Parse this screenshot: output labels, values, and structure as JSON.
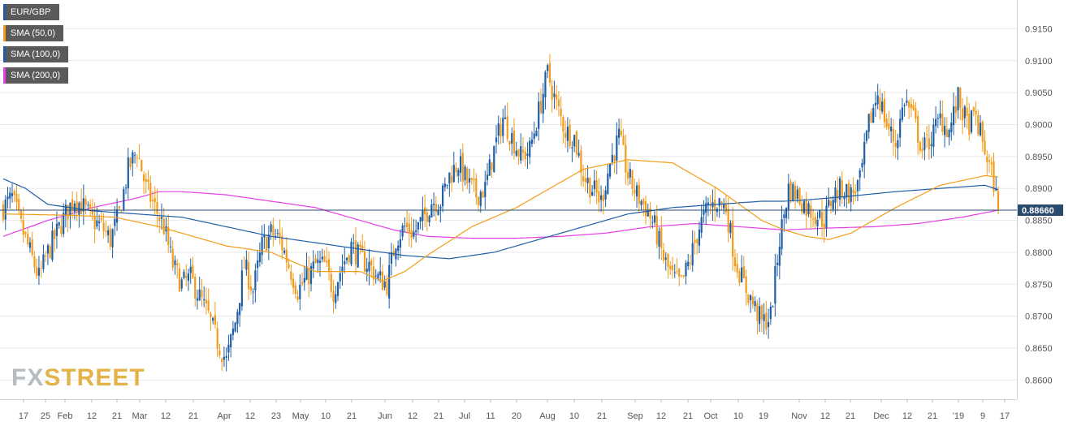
{
  "chart_data": {
    "type": "candlestick",
    "legend": [
      {
        "label": "EUR/GBP",
        "color": "#1f5fa8"
      },
      {
        "label": "SMA (50,0)",
        "color": "#f39c1b"
      },
      {
        "label": "SMA (100,0)",
        "color": "#1f5fa8"
      },
      {
        "label": "SMA (200,0)",
        "color": "#e83ee8"
      }
    ],
    "ylim": [
      0.857,
      0.9195
    ],
    "y_ticks": [
      "0.8600",
      "0.8650",
      "0.8700",
      "0.8750",
      "0.8800",
      "0.8850",
      "0.8900",
      "0.8950",
      "0.9000",
      "0.9050",
      "0.9100",
      "0.9150"
    ],
    "x_ticks": [
      "17",
      "25",
      "Feb",
      "12",
      "21",
      "Mar",
      "12",
      "21",
      "Apr",
      "12",
      "23",
      "May",
      "10",
      "21",
      "Jun",
      "12",
      "21",
      "Jul",
      "11",
      "20",
      "Aug",
      "10",
      "21",
      "Sep",
      "12",
      "21",
      "Oct",
      "10",
      "19",
      "Nov",
      "12",
      "21",
      "Dec",
      "12",
      "21",
      "'19",
      "9",
      "17"
    ],
    "current_price": "0.88660",
    "current_value": 0.8866,
    "colors": {
      "up": "#1f5fa8",
      "down": "#f39c1b",
      "sma50": "#f39c1b",
      "sma100": "#1f5fa8",
      "sma200": "#e83ee8",
      "grid": "#e9e9e9",
      "price_tag": "#2a4a6e"
    },
    "close_anchors": [
      [
        0,
        0.887
      ],
      [
        4,
        0.8885
      ],
      [
        8,
        0.884
      ],
      [
        12,
        0.88
      ],
      [
        16,
        0.876
      ],
      [
        20,
        0.88
      ],
      [
        24,
        0.883
      ],
      [
        28,
        0.886
      ],
      [
        32,
        0.8885
      ],
      [
        36,
        0.887
      ],
      [
        40,
        0.885
      ],
      [
        44,
        0.884
      ],
      [
        48,
        0.882
      ],
      [
        52,
        0.886
      ],
      [
        56,
        0.893
      ],
      [
        60,
        0.896
      ],
      [
        64,
        0.89
      ],
      [
        68,
        0.887
      ],
      [
        72,
        0.884
      ],
      [
        76,
        0.878
      ],
      [
        80,
        0.875
      ],
      [
        84,
        0.876
      ],
      [
        88,
        0.873
      ],
      [
        92,
        0.87
      ],
      [
        96,
        0.866
      ],
      [
        100,
        0.863
      ],
      [
        104,
        0.869
      ],
      [
        108,
        0.878
      ],
      [
        112,
        0.874
      ],
      [
        116,
        0.881
      ],
      [
        120,
        0.883
      ],
      [
        124,
        0.882
      ],
      [
        128,
        0.878
      ],
      [
        132,
        0.874
      ],
      [
        136,
        0.876
      ],
      [
        140,
        0.878
      ],
      [
        144,
        0.878
      ],
      [
        148,
        0.874
      ],
      [
        152,
        0.878
      ],
      [
        156,
        0.881
      ],
      [
        160,
        0.879
      ],
      [
        164,
        0.878
      ],
      [
        168,
        0.876
      ],
      [
        172,
        0.875
      ],
      [
        176,
        0.882
      ],
      [
        180,
        0.884
      ],
      [
        184,
        0.883
      ],
      [
        188,
        0.885
      ],
      [
        192,
        0.888
      ],
      [
        196,
        0.888
      ],
      [
        200,
        0.892
      ],
      [
        204,
        0.894
      ],
      [
        208,
        0.891
      ],
      [
        212,
        0.889
      ],
      [
        216,
        0.89
      ],
      [
        220,
        0.896
      ],
      [
        224,
        0.901
      ],
      [
        228,
        0.898
      ],
      [
        232,
        0.895
      ],
      [
        236,
        0.896
      ],
      [
        240,
        0.902
      ],
      [
        244,
        0.908
      ],
      [
        248,
        0.903
      ],
      [
        252,
        0.899
      ],
      [
        256,
        0.898
      ],
      [
        260,
        0.892
      ],
      [
        264,
        0.89
      ],
      [
        268,
        0.888
      ],
      [
        272,
        0.894
      ],
      [
        276,
        0.898
      ],
      [
        280,
        0.892
      ],
      [
        284,
        0.889
      ],
      [
        288,
        0.887
      ],
      [
        292,
        0.884
      ],
      [
        296,
        0.879
      ],
      [
        300,
        0.876
      ],
      [
        304,
        0.875
      ],
      [
        308,
        0.879
      ],
      [
        312,
        0.884
      ],
      [
        316,
        0.887
      ],
      [
        320,
        0.888
      ],
      [
        324,
        0.887
      ],
      [
        328,
        0.879
      ],
      [
        332,
        0.875
      ],
      [
        336,
        0.872
      ],
      [
        340,
        0.869
      ],
      [
        344,
        0.87
      ],
      [
        348,
        0.882
      ],
      [
        352,
        0.89
      ],
      [
        356,
        0.889
      ],
      [
        360,
        0.887
      ],
      [
        364,
        0.886
      ],
      [
        368,
        0.885
      ],
      [
        372,
        0.889
      ],
      [
        376,
        0.89
      ],
      [
        380,
        0.889
      ],
      [
        384,
        0.891
      ],
      [
        388,
        0.9
      ],
      [
        392,
        0.905
      ],
      [
        396,
        0.9
      ],
      [
        400,
        0.897
      ],
      [
        404,
        0.904
      ],
      [
        408,
        0.901
      ],
      [
        412,
        0.896
      ],
      [
        416,
        0.898
      ],
      [
        420,
        0.901
      ],
      [
        424,
        0.899
      ],
      [
        428,
        0.904
      ],
      [
        432,
        0.9
      ],
      [
        436,
        0.901
      ],
      [
        440,
        0.896
      ],
      [
        444,
        0.891
      ],
      [
        446,
        0.8866
      ]
    ],
    "sma50_anchors": [
      [
        0,
        0.886
      ],
      [
        30,
        0.8858
      ],
      [
        50,
        0.8855
      ],
      [
        70,
        0.884
      ],
      [
        80,
        0.883
      ],
      [
        100,
        0.881
      ],
      [
        120,
        0.88
      ],
      [
        140,
        0.877
      ],
      [
        160,
        0.877
      ],
      [
        170,
        0.8755
      ],
      [
        180,
        0.877
      ],
      [
        190,
        0.8795
      ],
      [
        210,
        0.884
      ],
      [
        230,
        0.887
      ],
      [
        250,
        0.891
      ],
      [
        260,
        0.893
      ],
      [
        280,
        0.8945
      ],
      [
        300,
        0.894
      ],
      [
        320,
        0.89
      ],
      [
        340,
        0.885
      ],
      [
        350,
        0.8835
      ],
      [
        360,
        0.8825
      ],
      [
        370,
        0.882
      ],
      [
        380,
        0.883
      ],
      [
        400,
        0.887
      ],
      [
        420,
        0.8905
      ],
      [
        440,
        0.892
      ],
      [
        446,
        0.8918
      ]
    ],
    "sma100_anchors": [
      [
        0,
        0.8915
      ],
      [
        10,
        0.89
      ],
      [
        20,
        0.8875
      ],
      [
        40,
        0.8865
      ],
      [
        60,
        0.886
      ],
      [
        80,
        0.8855
      ],
      [
        100,
        0.884
      ],
      [
        120,
        0.8825
      ],
      [
        140,
        0.8815
      ],
      [
        160,
        0.8805
      ],
      [
        180,
        0.8795
      ],
      [
        200,
        0.879
      ],
      [
        220,
        0.88
      ],
      [
        240,
        0.882
      ],
      [
        260,
        0.884
      ],
      [
        280,
        0.886
      ],
      [
        300,
        0.887
      ],
      [
        320,
        0.8875
      ],
      [
        340,
        0.888
      ],
      [
        350,
        0.888
      ],
      [
        360,
        0.8882
      ],
      [
        380,
        0.8888
      ],
      [
        400,
        0.8895
      ],
      [
        420,
        0.89
      ],
      [
        440,
        0.8905
      ],
      [
        446,
        0.8898
      ]
    ],
    "sma200_anchors": [
      [
        0,
        0.8825
      ],
      [
        20,
        0.885
      ],
      [
        40,
        0.887
      ],
      [
        60,
        0.8885
      ],
      [
        70,
        0.8895
      ],
      [
        80,
        0.8895
      ],
      [
        100,
        0.889
      ],
      [
        120,
        0.888
      ],
      [
        140,
        0.887
      ],
      [
        160,
        0.885
      ],
      [
        175,
        0.8835
      ],
      [
        190,
        0.8825
      ],
      [
        210,
        0.8822
      ],
      [
        230,
        0.8822
      ],
      [
        250,
        0.8825
      ],
      [
        270,
        0.883
      ],
      [
        290,
        0.884
      ],
      [
        310,
        0.8845
      ],
      [
        330,
        0.884
      ],
      [
        350,
        0.8835
      ],
      [
        370,
        0.8838
      ],
      [
        390,
        0.884
      ],
      [
        410,
        0.8845
      ],
      [
        430,
        0.8855
      ],
      [
        446,
        0.8866
      ]
    ]
  }
}
